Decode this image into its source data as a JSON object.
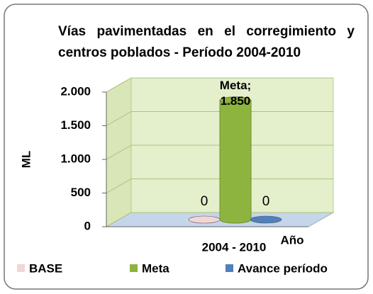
{
  "chart_data": {
    "type": "bar3d",
    "title": "Vías pavimentadas en el corregimiento y centros poblados - Período 2004-2010",
    "y_label": "ML",
    "x_label": "Año",
    "categories": [
      "2004 - 2010"
    ],
    "series": [
      {
        "name": "BASE",
        "color": "#f2d6d5",
        "values": [
          0
        ]
      },
      {
        "name": "Meta",
        "color": "#8db43e",
        "values": [
          1850
        ],
        "value_labels": [
          "Meta;\n1.850"
        ]
      },
      {
        "name": "Avance período",
        "color": "#4f81bd",
        "values": [
          0
        ]
      }
    ],
    "ylim": [
      0,
      2000
    ],
    "yticks": [
      0,
      {
        "value": 500,
        "label": "500"
      },
      {
        "value": 1000,
        "label": "1.000"
      },
      {
        "value": 1500,
        "label": "1.500"
      },
      {
        "value": 2000,
        "label": "2.000"
      }
    ],
    "grid": true,
    "legend": "bottom"
  }
}
